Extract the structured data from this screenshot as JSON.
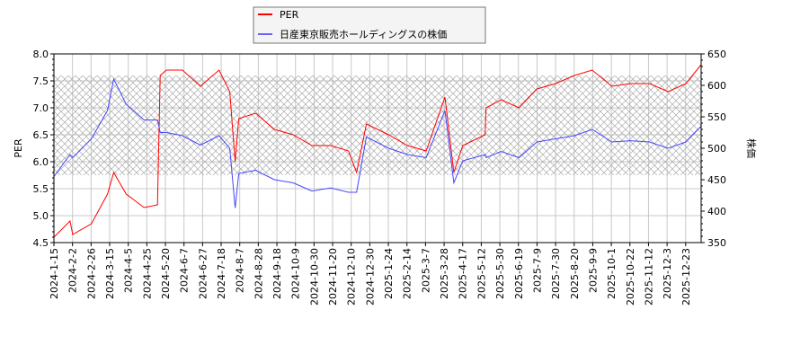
{
  "chart_data": {
    "type": "line",
    "ylabel_left": "PER",
    "ylabel_right": "株価",
    "ylim_left": [
      4.5,
      8.0
    ],
    "ylim_right": [
      350,
      650
    ],
    "yticks_left": [
      "4.5",
      "5.0",
      "5.5",
      "6.0",
      "6.5",
      "7.0",
      "7.5",
      "8.0"
    ],
    "yticks_right": [
      "350",
      "400",
      "450",
      "500",
      "550",
      "600",
      "650"
    ],
    "shaded_band_per": [
      5.75,
      7.6
    ],
    "grid": true,
    "legend_placement": "top-center",
    "xticks": [
      "2024-1-15",
      "2024-2-2",
      "2024-2-26",
      "2024-3-15",
      "2024-4-5",
      "2024-4-25",
      "2024-5-20",
      "2024-6-7",
      "2024-6-27",
      "2024-7-18",
      "2024-8-7",
      "2024-8-28",
      "2024-9-18",
      "2024-10-9",
      "2024-10-30",
      "2024-11-20",
      "2024-12-10",
      "2024-12-30",
      "2025-1-24",
      "2025-2-14",
      "2025-3-7",
      "2025-3-28",
      "2025-4-17",
      "2025-5-12",
      "2025-5-30",
      "2025-6-19",
      "2025-7-9",
      "2025-7-30",
      "2025-8-20",
      "2025-9-9",
      "2025-10-1",
      "2025-10-22",
      "2025-11-12",
      "2025-12-3",
      "2025-12-23"
    ],
    "series": [
      {
        "name": "PER",
        "color": "#ff0000",
        "axis": "left",
        "x": [
          "2024-1-15",
          "2024-2-2",
          "2024-2-5",
          "2024-2-26",
          "2024-3-15",
          "2024-3-22",
          "2024-4-5",
          "2024-4-25",
          "2024-5-10",
          "2024-5-13",
          "2024-5-20",
          "2024-6-7",
          "2024-6-27",
          "2024-7-18",
          "2024-7-30",
          "2024-8-5",
          "2024-8-9",
          "2024-8-28",
          "2024-9-18",
          "2024-10-9",
          "2024-10-30",
          "2024-11-20",
          "2024-12-10",
          "2024-12-19",
          "2024-12-30",
          "2025-1-24",
          "2025-2-14",
          "2025-3-7",
          "2025-3-28",
          "2025-4-7",
          "2025-4-17",
          "2025-5-12",
          "2025-5-13",
          "2025-5-30",
          "2025-6-19",
          "2025-7-9",
          "2025-7-30",
          "2025-8-20",
          "2025-9-9",
          "2025-10-1",
          "2025-10-22",
          "2025-11-12",
          "2025-12-3",
          "2025-12-23",
          "2026-1-9"
        ],
        "values": [
          4.6,
          4.9,
          4.65,
          4.85,
          5.4,
          5.8,
          5.4,
          5.15,
          5.2,
          7.6,
          7.7,
          7.7,
          7.4,
          7.7,
          7.3,
          6.0,
          6.8,
          6.9,
          6.6,
          6.5,
          6.3,
          6.3,
          6.2,
          5.8,
          6.7,
          6.5,
          6.3,
          6.2,
          7.2,
          5.8,
          6.3,
          6.5,
          7.0,
          7.15,
          7.0,
          7.35,
          7.45,
          7.6,
          7.7,
          7.4,
          7.45,
          7.45,
          7.3,
          7.45,
          7.8
        ]
      },
      {
        "name": "日産東京販売ホールディングスの株価",
        "color": "#4444ff",
        "axis": "right",
        "x": [
          "2024-1-15",
          "2024-2-2",
          "2024-2-5",
          "2024-2-26",
          "2024-3-15",
          "2024-3-22",
          "2024-4-5",
          "2024-4-25",
          "2024-5-10",
          "2024-5-13",
          "2024-5-20",
          "2024-6-7",
          "2024-6-27",
          "2024-7-18",
          "2024-7-30",
          "2024-8-5",
          "2024-8-9",
          "2024-8-28",
          "2024-9-18",
          "2024-10-9",
          "2024-10-30",
          "2024-11-20",
          "2024-12-10",
          "2024-12-19",
          "2024-12-30",
          "2025-1-24",
          "2025-2-14",
          "2025-3-7",
          "2025-3-28",
          "2025-4-7",
          "2025-4-17",
          "2025-5-12",
          "2025-5-13",
          "2025-5-30",
          "2025-6-19",
          "2025-7-9",
          "2025-7-30",
          "2025-8-20",
          "2025-9-9",
          "2025-10-1",
          "2025-10-22",
          "2025-11-12",
          "2025-12-3",
          "2025-12-23",
          "2026-1-9"
        ],
        "values": [
          455,
          490,
          485,
          515,
          560,
          610,
          570,
          545,
          545,
          525,
          525,
          520,
          505,
          520,
          500,
          405,
          460,
          465,
          450,
          445,
          432,
          437,
          430,
          430,
          518,
          500,
          490,
          485,
          560,
          445,
          480,
          490,
          485,
          495,
          485,
          510,
          515,
          520,
          530,
          510,
          512,
          510,
          500,
          510,
          535
        ]
      }
    ]
  }
}
